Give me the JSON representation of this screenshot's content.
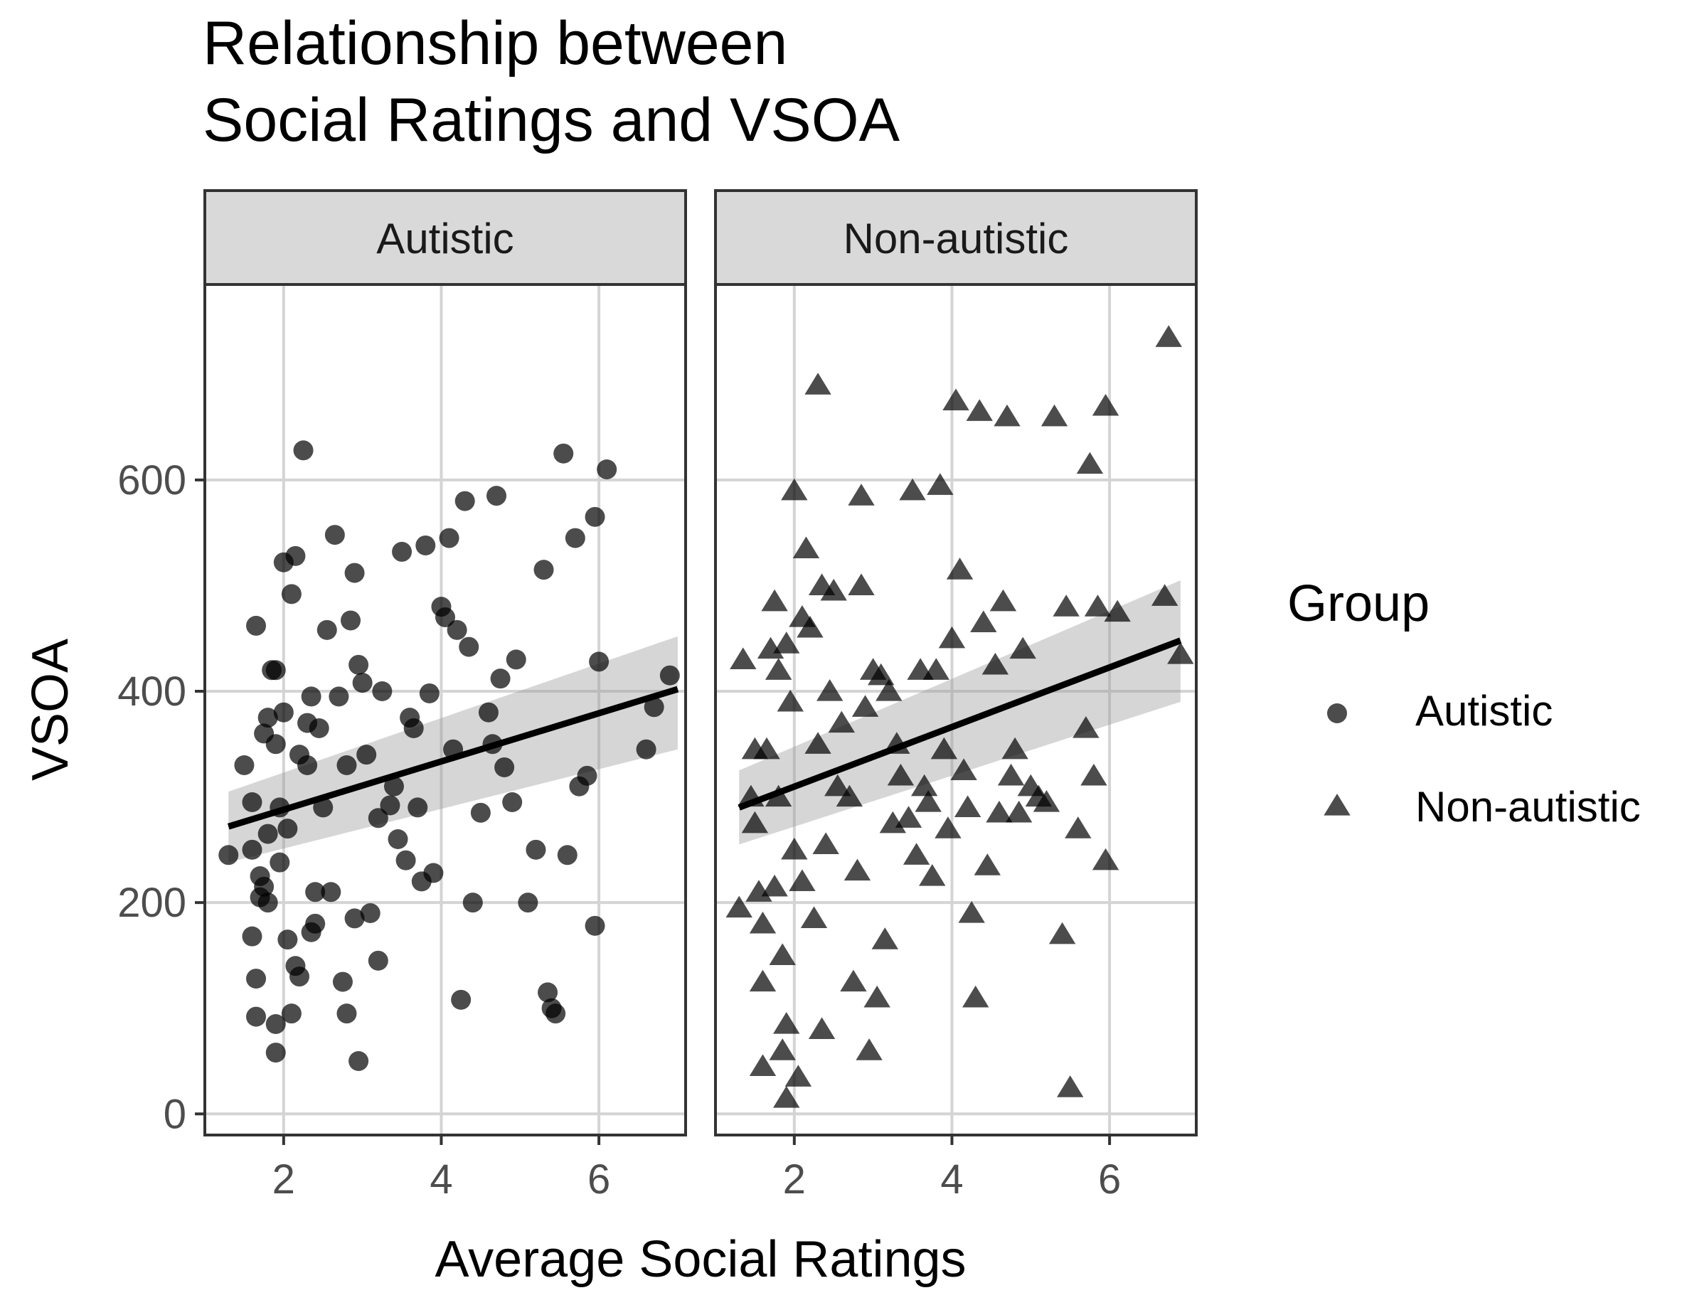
{
  "chart_data": {
    "type": "scatter",
    "title": [
      "Relationship between",
      "Social Ratings and VSOA"
    ],
    "xlabel": "Average Social Ratings",
    "ylabel": "VSOA",
    "xlim": [
      1.0,
      7.1
    ],
    "ylim": [
      -20,
      785
    ],
    "x_ticks": [
      2,
      4,
      6
    ],
    "y_ticks": [
      0,
      200,
      400,
      600
    ],
    "legend": {
      "title": "Group",
      "placement": "right",
      "entries": [
        {
          "label": "Autistic",
          "marker": "circle"
        },
        {
          "label": "Non-autistic",
          "marker": "triangle"
        }
      ]
    },
    "panels": [
      {
        "label": "Autistic",
        "marker": "circle",
        "trend": {
          "x": [
            1.3,
            7.0
          ],
          "y": [
            272,
            402
          ],
          "ci_lower": [
            238,
            345
          ],
          "ci_upper": [
            305,
            452
          ]
        },
        "points": [
          [
            1.3,
            245
          ],
          [
            1.5,
            330
          ],
          [
            1.6,
            295
          ],
          [
            1.6,
            250
          ],
          [
            1.65,
            462
          ],
          [
            1.65,
            128
          ],
          [
            1.65,
            92
          ],
          [
            1.6,
            168
          ],
          [
            1.7,
            225
          ],
          [
            1.7,
            205
          ],
          [
            1.75,
            215
          ],
          [
            1.75,
            360
          ],
          [
            1.8,
            375
          ],
          [
            1.8,
            200
          ],
          [
            1.8,
            265
          ],
          [
            1.85,
            420
          ],
          [
            1.9,
            420
          ],
          [
            1.9,
            350
          ],
          [
            1.9,
            85
          ],
          [
            1.9,
            58
          ],
          [
            1.95,
            290
          ],
          [
            1.95,
            238
          ],
          [
            2.0,
            380
          ],
          [
            2.0,
            522
          ],
          [
            2.05,
            270
          ],
          [
            2.05,
            165
          ],
          [
            2.1,
            492
          ],
          [
            2.1,
            95
          ],
          [
            2.15,
            140
          ],
          [
            2.15,
            528
          ],
          [
            2.2,
            130
          ],
          [
            2.2,
            340
          ],
          [
            2.25,
            628
          ],
          [
            2.3,
            370
          ],
          [
            2.3,
            330
          ],
          [
            2.35,
            172
          ],
          [
            2.35,
            395
          ],
          [
            2.4,
            210
          ],
          [
            2.4,
            180
          ],
          [
            2.45,
            365
          ],
          [
            2.5,
            290
          ],
          [
            2.55,
            458
          ],
          [
            2.6,
            210
          ],
          [
            2.65,
            548
          ],
          [
            2.7,
            395
          ],
          [
            2.75,
            125
          ],
          [
            2.8,
            330
          ],
          [
            2.8,
            95
          ],
          [
            2.85,
            467
          ],
          [
            2.9,
            512
          ],
          [
            2.9,
            185
          ],
          [
            2.95,
            425
          ],
          [
            2.95,
            50
          ],
          [
            3.0,
            408
          ],
          [
            3.05,
            340
          ],
          [
            3.1,
            190
          ],
          [
            3.2,
            280
          ],
          [
            3.2,
            145
          ],
          [
            3.25,
            400
          ],
          [
            3.35,
            292
          ],
          [
            3.4,
            310
          ],
          [
            3.45,
            260
          ],
          [
            3.5,
            532
          ],
          [
            3.55,
            240
          ],
          [
            3.6,
            375
          ],
          [
            3.65,
            365
          ],
          [
            3.7,
            290
          ],
          [
            3.75,
            220
          ],
          [
            3.8,
            538
          ],
          [
            3.85,
            398
          ],
          [
            3.9,
            228
          ],
          [
            4.0,
            480
          ],
          [
            4.05,
            470
          ],
          [
            4.1,
            545
          ],
          [
            4.15,
            345
          ],
          [
            4.2,
            458
          ],
          [
            4.25,
            108
          ],
          [
            4.3,
            580
          ],
          [
            4.35,
            442
          ],
          [
            4.4,
            200
          ],
          [
            4.5,
            285
          ],
          [
            4.6,
            380
          ],
          [
            4.65,
            350
          ],
          [
            4.7,
            585
          ],
          [
            4.75,
            412
          ],
          [
            4.8,
            328
          ],
          [
            4.9,
            295
          ],
          [
            4.95,
            430
          ],
          [
            5.1,
            200
          ],
          [
            5.2,
            250
          ],
          [
            5.3,
            515
          ],
          [
            5.35,
            115
          ],
          [
            5.4,
            100
          ],
          [
            5.45,
            95
          ],
          [
            5.55,
            625
          ],
          [
            5.6,
            245
          ],
          [
            5.7,
            545
          ],
          [
            5.75,
            310
          ],
          [
            5.85,
            320
          ],
          [
            5.95,
            178
          ],
          [
            5.95,
            565
          ],
          [
            6.0,
            428
          ],
          [
            6.1,
            610
          ],
          [
            6.6,
            345
          ],
          [
            6.7,
            385
          ],
          [
            6.9,
            415
          ]
        ]
      },
      {
        "label": "Non-autistic",
        "marker": "triangle",
        "trend": {
          "x": [
            1.3,
            6.9
          ],
          "y": [
            290,
            448
          ],
          "ci_lower": [
            255,
            390
          ],
          "ci_upper": [
            325,
            505
          ]
        },
        "points": [
          [
            1.3,
            195
          ],
          [
            1.35,
            430
          ],
          [
            1.45,
            300
          ],
          [
            1.5,
            275
          ],
          [
            1.5,
            345
          ],
          [
            1.55,
            210
          ],
          [
            1.6,
            180
          ],
          [
            1.6,
            125
          ],
          [
            1.6,
            45
          ],
          [
            1.65,
            345
          ],
          [
            1.7,
            440
          ],
          [
            1.75,
            485
          ],
          [
            1.75,
            215
          ],
          [
            1.8,
            300
          ],
          [
            1.8,
            420
          ],
          [
            1.85,
            150
          ],
          [
            1.85,
            60
          ],
          [
            1.9,
            85
          ],
          [
            1.9,
            15
          ],
          [
            1.9,
            445
          ],
          [
            1.95,
            390
          ],
          [
            2.0,
            590
          ],
          [
            2.0,
            250
          ],
          [
            2.05,
            35
          ],
          [
            2.1,
            470
          ],
          [
            2.1,
            220
          ],
          [
            2.15,
            535
          ],
          [
            2.2,
            460
          ],
          [
            2.25,
            185
          ],
          [
            2.3,
            690
          ],
          [
            2.3,
            350
          ],
          [
            2.35,
            500
          ],
          [
            2.35,
            80
          ],
          [
            2.4,
            255
          ],
          [
            2.45,
            400
          ],
          [
            2.5,
            495
          ],
          [
            2.55,
            310
          ],
          [
            2.6,
            370
          ],
          [
            2.7,
            300
          ],
          [
            2.75,
            125
          ],
          [
            2.8,
            230
          ],
          [
            2.85,
            500
          ],
          [
            2.85,
            585
          ],
          [
            2.9,
            385
          ],
          [
            2.95,
            60
          ],
          [
            3.0,
            420
          ],
          [
            3.05,
            110
          ],
          [
            3.1,
            415
          ],
          [
            3.15,
            165
          ],
          [
            3.2,
            400
          ],
          [
            3.25,
            275
          ],
          [
            3.3,
            350
          ],
          [
            3.35,
            320
          ],
          [
            3.45,
            280
          ],
          [
            3.5,
            590
          ],
          [
            3.55,
            245
          ],
          [
            3.6,
            420
          ],
          [
            3.65,
            310
          ],
          [
            3.7,
            295
          ],
          [
            3.75,
            225
          ],
          [
            3.8,
            420
          ],
          [
            3.85,
            595
          ],
          [
            3.9,
            345
          ],
          [
            3.95,
            270
          ],
          [
            4.0,
            450
          ],
          [
            4.05,
            675
          ],
          [
            4.1,
            515
          ],
          [
            4.15,
            325
          ],
          [
            4.2,
            290
          ],
          [
            4.25,
            190
          ],
          [
            4.3,
            110
          ],
          [
            4.35,
            665
          ],
          [
            4.4,
            465
          ],
          [
            4.45,
            235
          ],
          [
            4.55,
            425
          ],
          [
            4.6,
            285
          ],
          [
            4.65,
            485
          ],
          [
            4.7,
            660
          ],
          [
            4.75,
            320
          ],
          [
            4.8,
            345
          ],
          [
            4.85,
            285
          ],
          [
            4.9,
            440
          ],
          [
            5.0,
            310
          ],
          [
            5.1,
            300
          ],
          [
            5.2,
            295
          ],
          [
            5.3,
            660
          ],
          [
            5.4,
            170
          ],
          [
            5.45,
            480
          ],
          [
            5.5,
            25
          ],
          [
            5.6,
            270
          ],
          [
            5.7,
            365
          ],
          [
            5.75,
            615
          ],
          [
            5.8,
            320
          ],
          [
            5.85,
            480
          ],
          [
            5.95,
            240
          ],
          [
            5.95,
            670
          ],
          [
            6.1,
            475
          ],
          [
            6.7,
            490
          ],
          [
            6.75,
            735
          ],
          [
            6.9,
            435
          ]
        ]
      }
    ]
  }
}
